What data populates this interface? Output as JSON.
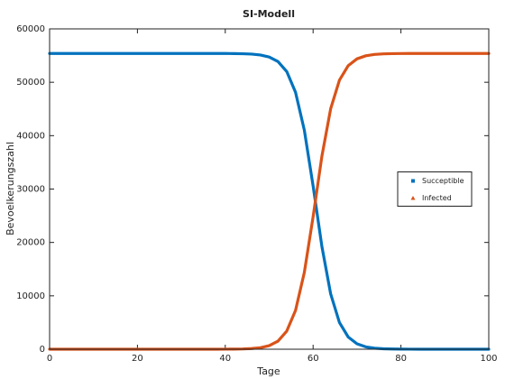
{
  "chart_data": {
    "type": "line",
    "title": "SI-Modell",
    "x_label": "Tage",
    "y_label": "Bevoelkerungszahl",
    "x": [
      0,
      2,
      4,
      6,
      8,
      10,
      12,
      14,
      16,
      18,
      20,
      22,
      24,
      26,
      28,
      30,
      32,
      34,
      36,
      38,
      40,
      42,
      44,
      46,
      48,
      50,
      52,
      54,
      56,
      58,
      60,
      62,
      64,
      66,
      68,
      70,
      72,
      74,
      76,
      78,
      80,
      82,
      84,
      86,
      88,
      90,
      92,
      94,
      96,
      98,
      100
    ],
    "series": [
      {
        "name": "Succeptible",
        "color": "#0072bd",
        "marker": "square",
        "values": [
          55400,
          55400,
          55400,
          55400,
          55400,
          55400,
          55400,
          55400,
          55400,
          55400,
          55400,
          55400,
          55400,
          55400,
          55400,
          55400,
          55400,
          55399,
          55398,
          55396,
          55390,
          55377,
          55346,
          55275,
          55111,
          54735,
          53882,
          52008,
          48130,
          41040,
          30600,
          19260,
          10360,
          5000,
          2280,
          1010,
          440,
          190,
          80,
          40,
          20,
          10,
          5,
          0,
          0,
          0,
          0,
          0,
          0,
          0,
          0
        ]
      },
      {
        "name": "Infected",
        "color": "#d95319",
        "marker": "triangle",
        "values": [
          0,
          0,
          0,
          0,
          0,
          0,
          0,
          0,
          0,
          0,
          0,
          0,
          0,
          0,
          0,
          0,
          0,
          1,
          2,
          4,
          10,
          23,
          54,
          125,
          289,
          665,
          1518,
          3392,
          7270,
          14360,
          24800,
          36140,
          45040,
          50400,
          53120,
          54390,
          54960,
          55210,
          55320,
          55360,
          55380,
          55390,
          55395,
          55400,
          55400,
          55400,
          55400,
          55400,
          55400,
          55400,
          55400
        ]
      }
    ],
    "xlim": [
      0,
      100
    ],
    "xticks": [
      0,
      20,
      40,
      60,
      80,
      100
    ],
    "ylim": [
      0,
      60000
    ],
    "yticks": [
      0,
      10000,
      20000,
      30000,
      40000,
      50000,
      60000
    ],
    "legend": "right"
  }
}
